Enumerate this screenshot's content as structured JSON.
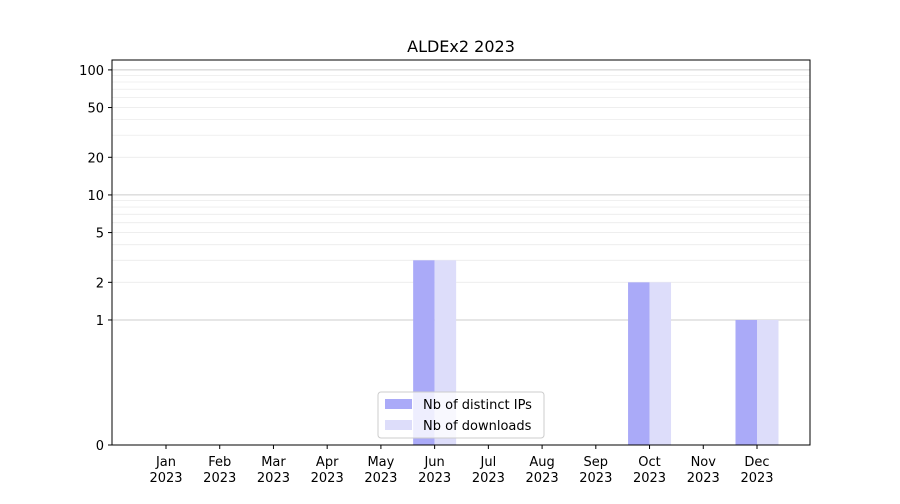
{
  "chart_data": {
    "type": "bar",
    "title": "ALDEx2 2023",
    "xlabel": "",
    "ylabel": "",
    "yscale": "symlog",
    "yticks": [
      0,
      1,
      2,
      5,
      10,
      20,
      50,
      100
    ],
    "ylim": [
      0,
      120
    ],
    "grid": "horizontal",
    "legend_position": "lower-center",
    "categories": [
      [
        "Jan",
        "2023"
      ],
      [
        "Feb",
        "2023"
      ],
      [
        "Mar",
        "2023"
      ],
      [
        "Apr",
        "2023"
      ],
      [
        "May",
        "2023"
      ],
      [
        "Jun",
        "2023"
      ],
      [
        "Jul",
        "2023"
      ],
      [
        "Aug",
        "2023"
      ],
      [
        "Sep",
        "2023"
      ],
      [
        "Oct",
        "2023"
      ],
      [
        "Nov",
        "2023"
      ],
      [
        "Dec",
        "2023"
      ]
    ],
    "series": [
      {
        "name": "Nb of distinct IPs",
        "color": "#aaaaf8",
        "values": [
          0,
          0,
          0,
          0,
          0,
          3,
          0,
          0,
          0,
          2,
          0,
          1
        ]
      },
      {
        "name": "Nb of downloads",
        "color": "#ddddfa",
        "values": [
          0,
          0,
          0,
          0,
          0,
          3,
          0,
          0,
          0,
          2,
          0,
          1
        ]
      }
    ]
  }
}
